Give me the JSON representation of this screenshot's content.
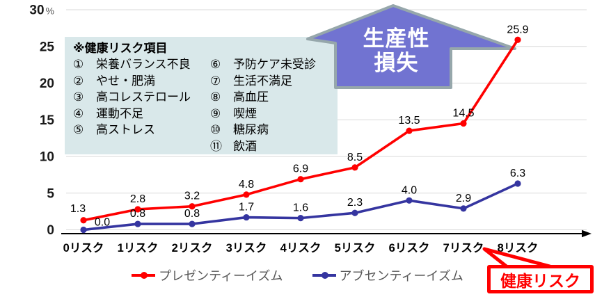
{
  "chart_data": {
    "type": "line",
    "categories": [
      "0リスク",
      "1リスク",
      "2リスク",
      "3リスク",
      "4リスク",
      "5リスク",
      "6リスク",
      "7リスク",
      "8リスク"
    ],
    "series": [
      {
        "key": "presenteeism",
        "name": "プレゼンティーイズム",
        "color": "#ff0000",
        "values": [
          1.3,
          2.8,
          3.2,
          4.8,
          6.9,
          8.5,
          13.5,
          14.5,
          25.9
        ]
      },
      {
        "key": "absenteeism",
        "name": "アブセンティーイズム",
        "color": "#3535a0",
        "values": [
          0.0,
          0.8,
          0.8,
          1.7,
          1.6,
          2.3,
          4.0,
          2.9,
          6.3
        ]
      }
    ],
    "title": "",
    "xlabel": "健康リスク",
    "ylabel": "",
    "y_unit": "%",
    "ylim": [
      0,
      30
    ],
    "yticks": [
      0,
      5,
      10,
      15,
      20,
      25,
      30
    ],
    "grid": true,
    "legend_position": "bottom"
  },
  "risk_box": {
    "title": "※健康リスク項目",
    "left_items": [
      {
        "num": "①",
        "label": "栄養バランス不良"
      },
      {
        "num": "②",
        "label": "やせ・肥満"
      },
      {
        "num": "③",
        "label": "高コレステロール"
      },
      {
        "num": "④",
        "label": "運動不足"
      },
      {
        "num": "⑤",
        "label": "高ストレス"
      }
    ],
    "right_items": [
      {
        "num": "⑥",
        "label": "予防ケア未受診"
      },
      {
        "num": "⑦",
        "label": "生活不満足"
      },
      {
        "num": "⑧",
        "label": "高血圧"
      },
      {
        "num": "⑨",
        "label": "喫煙"
      },
      {
        "num": "⑩",
        "label": "糖尿病"
      },
      {
        "num": "⑪",
        "label": "飲酒"
      }
    ]
  },
  "arrow": {
    "line1": "生産性",
    "line2": "損失"
  },
  "callout": {
    "label": "健康リスク"
  },
  "colors": {
    "presenteeism": "#ff0000",
    "absenteeism": "#3535a0",
    "arrow_fill": "#7173d1",
    "arrow_border": "#96a7ab",
    "risk_box_bg": "#d9e8ea",
    "gridline": "#d9d9d9",
    "axis": "#000000",
    "legend_text": "#595959",
    "callout_red": "#ff0000"
  }
}
